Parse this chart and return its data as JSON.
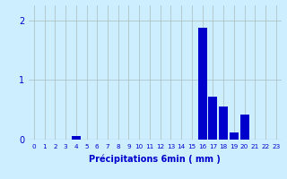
{
  "title": "",
  "xlabel": "Précipitations 6min ( mm )",
  "ylabel": "",
  "background_color": "#cceeff",
  "bar_color": "#0000cc",
  "grid_color": "#aabbbb",
  "xlim": [
    -0.5,
    23.5
  ],
  "ylim": [
    0,
    2.25
  ],
  "yticks": [
    0,
    1,
    2
  ],
  "xtick_labels": [
    "0",
    "1",
    "2",
    "3",
    "4",
    "5",
    "6",
    "7",
    "8",
    "9",
    "10",
    "11",
    "12",
    "13",
    "14",
    "15",
    "16",
    "17",
    "18",
    "19",
    "20",
    "21",
    "22",
    "23"
  ],
  "values": [
    0,
    0,
    0,
    0,
    0.06,
    0,
    0,
    0,
    0,
    0,
    0,
    0,
    0,
    0,
    0,
    0,
    1.88,
    0.72,
    0.55,
    0.12,
    0.42,
    0,
    0,
    0
  ]
}
